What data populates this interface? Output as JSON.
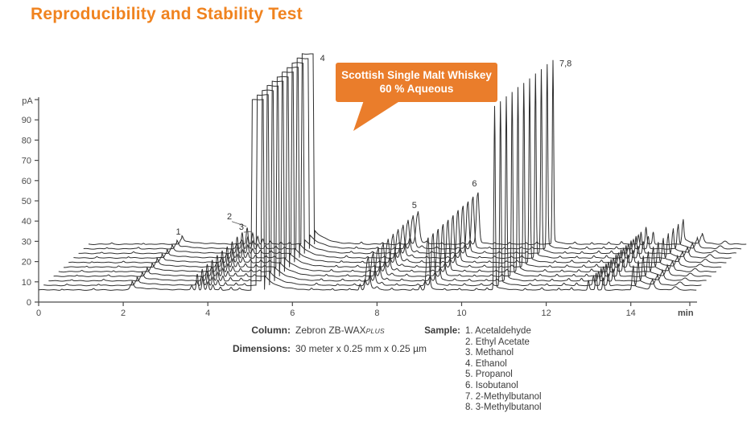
{
  "title": "Reproducibility and Stability Test",
  "callout": {
    "line1": "Scottish Single Malt Whiskey",
    "line2": "60 % Aqueous",
    "color": "#EA7D2B"
  },
  "footer": {
    "column_label": "Column:",
    "column_value": "Zebron ZB-WAX",
    "column_value_suffix": "PLUS",
    "dimensions_label": "Dimensions:",
    "dimensions_value": "30 meter x 0.25 mm x 0.25 µm",
    "sample_label": "Sample:",
    "samples": [
      "1. Acetaldehyde",
      "2. Ethyl Acetate",
      "3. Methanol",
      "4. Ethanol",
      "5. Propanol",
      "6. Isobutanol",
      "7. 2-Methylbutanol",
      "8. 3-Methylbutanol"
    ]
  },
  "chart_data": {
    "type": "line",
    "title": "Reproducibility and Stability Test",
    "subtitle": "Scottish Single Malt Whiskey 60 % Aqueous",
    "xlabel": "min",
    "ylabel": "pA",
    "x_ticks": [
      0,
      2,
      4,
      6,
      8,
      10,
      12,
      14
    ],
    "y_ticks": [
      0,
      10,
      20,
      30,
      40,
      50,
      60,
      70,
      80,
      90
    ],
    "xlim": [
      0,
      15.6
    ],
    "ylim": [
      0,
      100
    ],
    "grid": false,
    "line_color": "#2e2e2e",
    "axis_color": "#4a4a4a",
    "n_runs": 11,
    "run_offset_min": 0.118,
    "run_offset_pA": 2.26,
    "baseline_pA": 6,
    "run_duration_min": 15.55,
    "peaks": [
      {
        "label": "1",
        "compound": "Acetaldehyde",
        "t": 2.2,
        "h": 2.8,
        "w": 0.05,
        "tail_h": 1.6,
        "tail_k": 0.45
      },
      {
        "label": "2",
        "compound": "Ethyl Acetate",
        "t": 3.75,
        "h": 8,
        "w": 0.028
      },
      {
        "label": "3",
        "compound": "Methanol",
        "t": 3.88,
        "h": 5.5,
        "w": 0.028
      },
      {
        "label": "4",
        "compound": "Ethanol",
        "clipped": true,
        "h": 94,
        "rise": [
          5.02,
          5.05
        ],
        "fall": [
          5.31,
          5.34
        ],
        "tail_h": 7,
        "tail_k": 0.28
      },
      {
        "label": "5",
        "compound": "Propanol",
        "t": 7.78,
        "h": 15,
        "w": 0.055,
        "tail_h": 2,
        "tail_k": 0.15
      },
      {
        "label": "6",
        "compound": "Isobutanol",
        "t": 9.2,
        "h": 25,
        "w": 0.045,
        "tail_h": 2,
        "tail_k": 0.12
      },
      {
        "label": "7,8",
        "compound": "2-Methylbutanol + 3-Methylbutanol",
        "t": 10.78,
        "h": 91,
        "w": 0.022,
        "drift": 0.02,
        "tail_h": 2.5,
        "tail_k": 0.15
      }
    ],
    "minor_peaks": [
      {
        "t": 0.55,
        "h": 0.5,
        "w": 0.03
      },
      {
        "t": 1.3,
        "h": 0.6,
        "w": 0.03
      },
      {
        "t": 3.62,
        "h": 2,
        "w": 0.03
      },
      {
        "t": 4.0,
        "h": 4,
        "w": 0.028
      },
      {
        "t": 4.12,
        "h": 2.5,
        "w": 0.028
      },
      {
        "t": 4.3,
        "h": 1.5,
        "w": 0.03
      },
      {
        "t": 4.55,
        "h": 1.2,
        "w": 0.03
      },
      {
        "t": 4.75,
        "h": 0.8,
        "w": 0.03
      },
      {
        "t": 6.45,
        "h": 0.8,
        "w": 0.03
      },
      {
        "t": 6.95,
        "h": 0.7,
        "w": 0.03
      },
      {
        "t": 7.35,
        "h": 0.6,
        "w": 0.03
      },
      {
        "t": 7.6,
        "h": 3,
        "w": 0.03
      },
      {
        "t": 8.0,
        "h": 1,
        "w": 0.04
      },
      {
        "t": 8.35,
        "h": 0.8,
        "w": 0.03
      },
      {
        "t": 8.85,
        "h": 0.6,
        "w": 0.03
      },
      {
        "t": 9.02,
        "h": 2,
        "w": 0.03
      },
      {
        "t": 9.6,
        "h": 0.7,
        "w": 0.03
      },
      {
        "t": 9.95,
        "h": 0.8,
        "w": 0.03
      },
      {
        "t": 10.35,
        "h": 0.7,
        "w": 0.03
      },
      {
        "t": 10.6,
        "h": 1,
        "w": 0.03
      },
      {
        "t": 11.5,
        "h": 0.8,
        "w": 0.03
      },
      {
        "t": 11.9,
        "h": 0.9,
        "w": 0.03
      },
      {
        "t": 12.3,
        "h": 1,
        "w": 0.03
      },
      {
        "t": 12.6,
        "h": 1.2,
        "w": 0.03
      },
      {
        "t": 13.0,
        "h": 4.5,
        "w": 0.025
      },
      {
        "t": 13.18,
        "h": 8.5,
        "w": 0.025
      },
      {
        "t": 13.35,
        "h": 6,
        "w": 0.025
      },
      {
        "t": 14.05,
        "h": 10.5,
        "w": 0.03,
        "tail_h": 3,
        "tail_k": 0.18
      },
      {
        "t": 14.5,
        "h": 4,
        "w": 0.05,
        "tail_h": 1.5,
        "tail_k": 0.12
      },
      {
        "t": 15.05,
        "h": 1.5,
        "w": 0.07
      }
    ]
  }
}
